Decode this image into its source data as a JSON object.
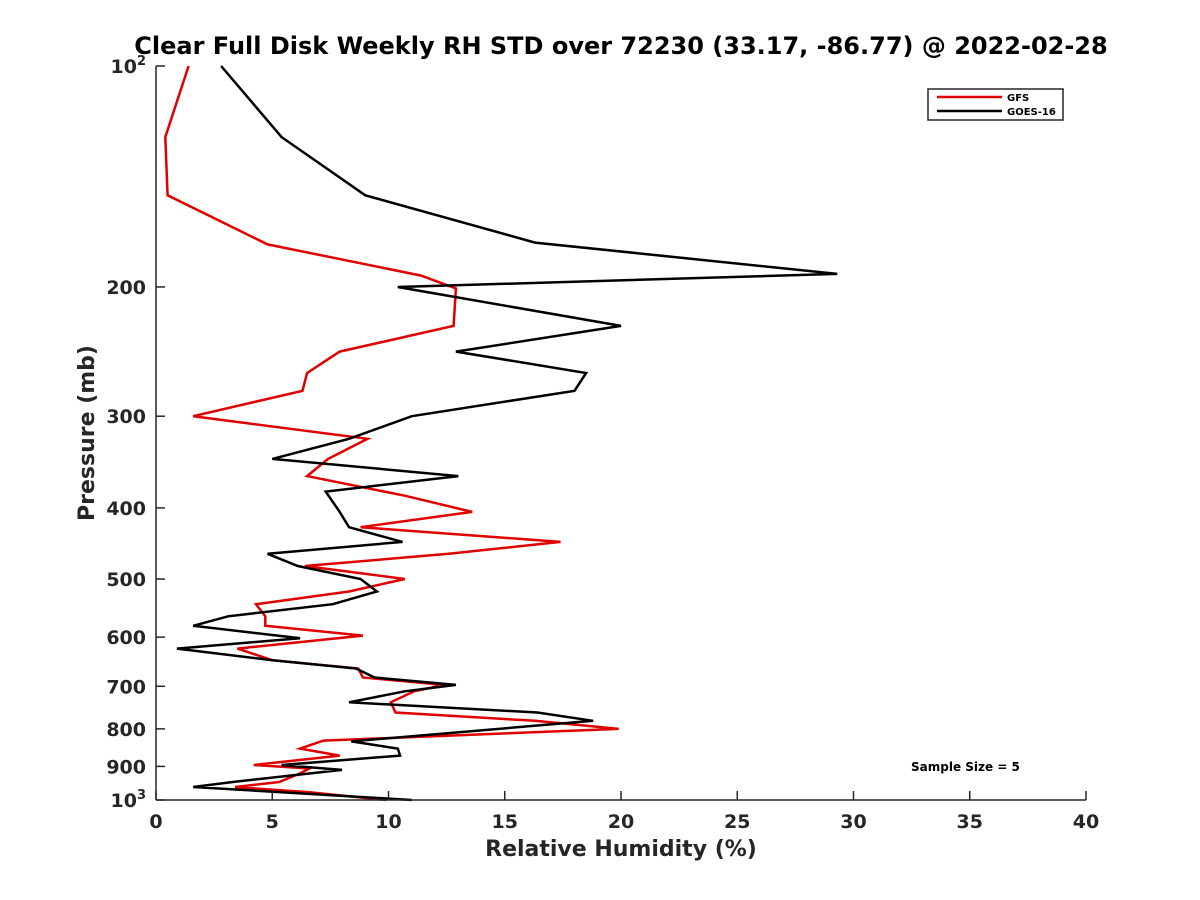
{
  "chart_data": {
    "type": "line",
    "title": "Clear Full Disk Weekly RH STD over 72230 (33.17, -86.77) @ 2022-02-28",
    "xlabel": "Relative Humidity (%)",
    "ylabel": "Pressure (mb)",
    "xlim": [
      0,
      40
    ],
    "ylim": [
      100,
      1000
    ],
    "yscale": "log",
    "y_reversed": true,
    "x_ticks": [
      0,
      5,
      10,
      15,
      20,
      25,
      30,
      35,
      40
    ],
    "x_tick_labels": [
      "0",
      "5",
      "10",
      "15",
      "20",
      "25",
      "30",
      "35",
      "40"
    ],
    "y_ticks": [
      {
        "value": 100,
        "base": "10",
        "exp": "2"
      },
      {
        "value": 200,
        "label": "200"
      },
      {
        "value": 300,
        "label": "300"
      },
      {
        "value": 400,
        "label": "400"
      },
      {
        "value": 500,
        "label": "500"
      },
      {
        "value": 600,
        "label": "600"
      },
      {
        "value": 700,
        "label": "700"
      },
      {
        "value": 800,
        "label": "800"
      },
      {
        "value": 900,
        "label": "900"
      },
      {
        "value": 1000,
        "base": "10",
        "exp": "3"
      }
    ],
    "legend_position": "top-right",
    "annotation": "Sample Size = 5",
    "series": [
      {
        "name": "GFS",
        "color": "#e00000",
        "points": [
          [
            1.4,
            100
          ],
          [
            0.4,
            125
          ],
          [
            0.5,
            150
          ],
          [
            4.8,
            175
          ],
          [
            11.4,
            193
          ],
          [
            12.9,
            201
          ],
          [
            12.8,
            226
          ],
          [
            7.9,
            245
          ],
          [
            6.5,
            262
          ],
          [
            6.3,
            277
          ],
          [
            1.6,
            300
          ],
          [
            9.1,
            322
          ],
          [
            7.4,
            343
          ],
          [
            6.5,
            362
          ],
          [
            10.7,
            385
          ],
          [
            13.6,
            405
          ],
          [
            8.8,
            425
          ],
          [
            17.4,
            445
          ],
          [
            12.6,
            462
          ],
          [
            6.4,
            480
          ],
          [
            10.7,
            500
          ],
          [
            8.3,
            520
          ],
          [
            4.3,
            541
          ],
          [
            4.7,
            562
          ],
          [
            4.7,
            579
          ],
          [
            8.9,
            597
          ],
          [
            3.5,
            622
          ],
          [
            5.0,
            645
          ],
          [
            8.7,
            662
          ],
          [
            8.9,
            681
          ],
          [
            12.4,
            697
          ],
          [
            11.1,
            711
          ],
          [
            10.1,
            736
          ],
          [
            10.3,
            760
          ],
          [
            16.3,
            780
          ],
          [
            19.9,
            800
          ],
          [
            7.2,
            830
          ],
          [
            6.2,
            851
          ],
          [
            7.9,
            870
          ],
          [
            4.2,
            896
          ],
          [
            6.6,
            906
          ],
          [
            6.2,
            920
          ],
          [
            5.3,
            945
          ],
          [
            3.4,
            960
          ],
          [
            6.6,
            976
          ],
          [
            9.9,
            1000
          ]
        ]
      },
      {
        "name": "GOES-16",
        "color": "#000000",
        "points": [
          [
            2.8,
            100
          ],
          [
            5.4,
            125
          ],
          [
            9.0,
            150
          ],
          [
            16.3,
            174
          ],
          [
            29.3,
            192
          ],
          [
            10.4,
            200
          ],
          [
            20.0,
            226
          ],
          [
            12.9,
            245
          ],
          [
            18.5,
            262
          ],
          [
            18.0,
            277
          ],
          [
            11.0,
            300
          ],
          [
            8.3,
            322
          ],
          [
            5.0,
            343
          ],
          [
            13.0,
            362
          ],
          [
            7.3,
            380
          ],
          [
            7.9,
            405
          ],
          [
            8.3,
            425
          ],
          [
            10.6,
            445
          ],
          [
            4.8,
            462
          ],
          [
            6.1,
            480
          ],
          [
            8.8,
            500
          ],
          [
            9.5,
            520
          ],
          [
            7.6,
            541
          ],
          [
            3.1,
            562
          ],
          [
            1.6,
            579
          ],
          [
            6.2,
            602
          ],
          [
            0.9,
            622
          ],
          [
            5.0,
            645
          ],
          [
            8.6,
            662
          ],
          [
            9.4,
            681
          ],
          [
            12.9,
            697
          ],
          [
            10.7,
            711
          ],
          [
            8.3,
            736
          ],
          [
            16.4,
            760
          ],
          [
            18.8,
            780
          ],
          [
            8.4,
            832
          ],
          [
            10.4,
            851
          ],
          [
            10.5,
            870
          ],
          [
            5.4,
            896
          ],
          [
            8.0,
            910
          ],
          [
            3.3,
            945
          ],
          [
            1.6,
            960
          ],
          [
            11.0,
            1000
          ]
        ]
      }
    ]
  },
  "legend": {
    "items": [
      {
        "label": "GFS",
        "color": "#e00000"
      },
      {
        "label": "GOES-16",
        "color": "#000000"
      }
    ]
  }
}
